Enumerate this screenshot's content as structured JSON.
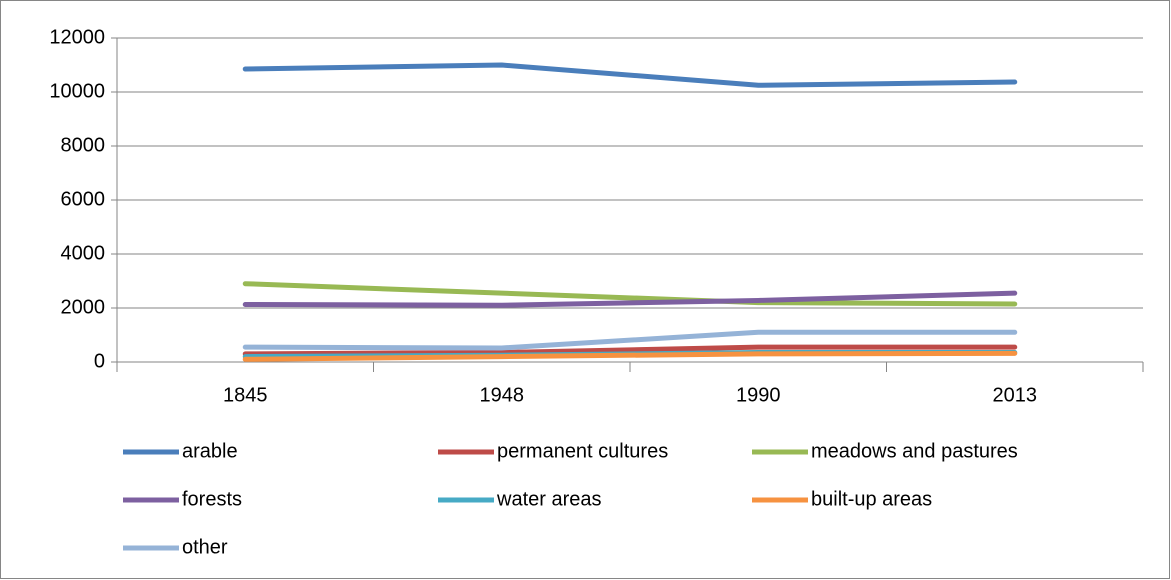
{
  "chart_data": {
    "type": "line",
    "categories": [
      "1845",
      "1948",
      "1990",
      "2013"
    ],
    "series": [
      {
        "name": "arable",
        "color": "#4a7ebb",
        "values": [
          10850,
          11000,
          10250,
          10370
        ]
      },
      {
        "name": "permanent cultures",
        "color": "#be4b48",
        "values": [
          300,
          350,
          550,
          550
        ]
      },
      {
        "name": "meadows and pastures",
        "color": "#98b954",
        "values": [
          2900,
          2550,
          2200,
          2150
        ]
      },
      {
        "name": "forests",
        "color": "#7d60a0",
        "values": [
          2130,
          2100,
          2280,
          2550
        ]
      },
      {
        "name": "water areas",
        "color": "#46aac5",
        "values": [
          200,
          250,
          350,
          350
        ]
      },
      {
        "name": "built-up areas",
        "color": "#f69240",
        "values": [
          100,
          200,
          300,
          320
        ]
      },
      {
        "name": "other",
        "color": "#95b3d7",
        "values": [
          550,
          520,
          1100,
          1100
        ]
      }
    ],
    "ylim": [
      0,
      12000
    ],
    "yticks": [
      0,
      2000,
      4000,
      6000,
      8000,
      10000,
      12000
    ],
    "grid": true,
    "legend": "bottom"
  }
}
